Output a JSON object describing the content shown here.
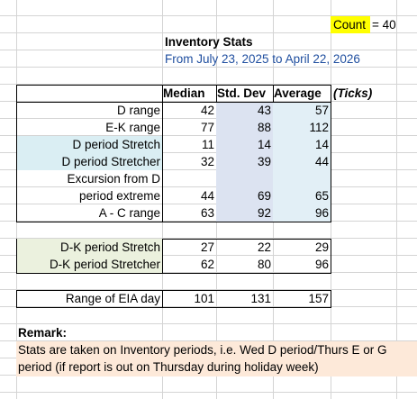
{
  "count": {
    "label": "Count",
    "text": "= 40"
  },
  "header": {
    "title": "Inventory Stats",
    "subtitle": "From July 23, 2025 to April 22, 2026"
  },
  "columns": [
    "Median",
    "Std. Dev",
    "Average",
    "(Ticks)"
  ],
  "tables": [
    {
      "rows": [
        {
          "label": [
            "D range"
          ],
          "median": 42,
          "std_dev": 43,
          "average": 57
        },
        {
          "label": [
            "E-K range"
          ],
          "median": 77,
          "std_dev": 88,
          "average": 112
        },
        {
          "label": [
            "D period Stretch"
          ],
          "median": 11,
          "std_dev": 14,
          "average": 14
        },
        {
          "label": [
            "D period Stretcher"
          ],
          "median": 32,
          "std_dev": 39,
          "average": 44
        },
        {
          "label": [
            "Excursion from D",
            "period extreme"
          ],
          "median": 44,
          "std_dev": 69,
          "average": 65
        },
        {
          "label": [
            "A - C range"
          ],
          "median": 63,
          "std_dev": 92,
          "average": 96
        }
      ]
    },
    {
      "rows": [
        {
          "label": [
            "D-K period Stretch"
          ],
          "median": 27,
          "std_dev": 22,
          "average": 29
        },
        {
          "label": [
            "D-K period Stretcher"
          ],
          "median": 62,
          "std_dev": 80,
          "average": 96
        }
      ]
    },
    {
      "rows": [
        {
          "label": [
            "Range of EIA day"
          ],
          "median": 101,
          "std_dev": 131,
          "average": 157
        }
      ]
    }
  ],
  "remark": {
    "title": "Remark:",
    "text": "Stats are taken on Inventory periods, i.e. Wed D period/Thurs E or G period (if report is out on Thursday during holiday week)"
  }
}
